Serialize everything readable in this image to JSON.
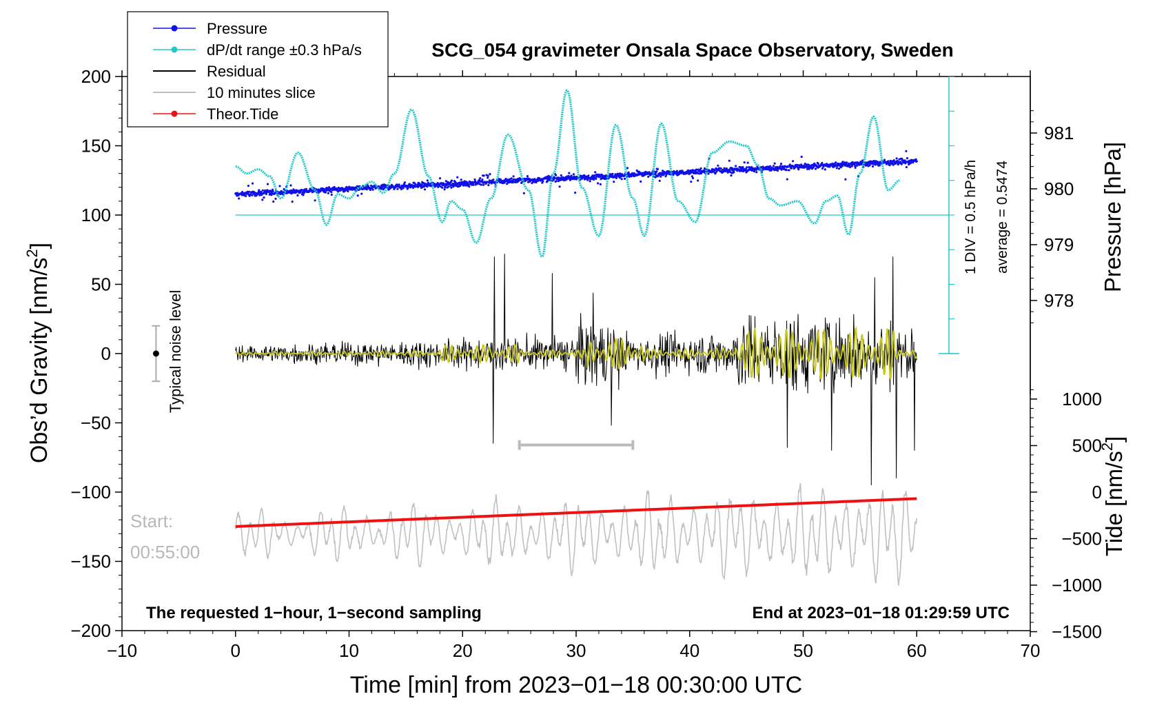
{
  "chart_data": {
    "type": "line",
    "title": "SCG_054 gravimeter Onsala Space Observatory, Sweden",
    "xlabel": "Time [min] from 2023−01−18 00:30:00 UTC",
    "ylabel_left_main": "Obs’d Gravity [nm/s",
    "ylabel_left_sup": "2",
    "ylabel_left_close": "]",
    "ylabel_right_pressure": "Pressure [hPa]",
    "ylabel_right_tide_main": "Tide [nm/s",
    "ylabel_right_tide_sup": "2",
    "ylabel_right_tide_close": "]",
    "xlim": [
      -10,
      70
    ],
    "ylim": [
      -200,
      200
    ],
    "pressure_ylim": [
      977,
      982
    ],
    "tide_ylim": [
      -1500,
      1500
    ],
    "x_ticks": [
      -10,
      0,
      10,
      20,
      30,
      40,
      50,
      60,
      70
    ],
    "x_tick_labels": [
      "−10",
      "0",
      "10",
      "20",
      "30",
      "40",
      "50",
      "60",
      "70"
    ],
    "y_ticks": [
      200,
      150,
      100,
      50,
      0,
      -50,
      -100,
      -150,
      -200
    ],
    "y_tick_labels": [
      "200",
      "150",
      "100",
      "50",
      "0",
      "−50",
      "−100",
      "−150",
      "−200"
    ],
    "pressure_ticks": [
      981,
      980,
      979,
      978
    ],
    "pressure_tick_labels": [
      "981",
      "980",
      "979",
      "978"
    ],
    "tide_ticks": [
      1000,
      500,
      0,
      -500,
      -1000,
      -1500
    ],
    "tide_tick_labels": [
      "1000",
      "500",
      "0",
      "−500",
      "−1000",
      "−1500"
    ],
    "legend": {
      "position": "top-left",
      "entries": [
        {
          "label": "Pressure",
          "color": "#1010e8",
          "style": "line-dot"
        },
        {
          "label": "dP/dt range ±0.3 hPa/s",
          "color": "#20c8c8",
          "style": "line-dot"
        },
        {
          "label": "Residual",
          "color": "#000000",
          "style": "line"
        },
        {
          "label": "10 minutes slice",
          "color": "#c0c0c0",
          "style": "line"
        },
        {
          "label": "Theor.Tide",
          "color": "#ee1111",
          "style": "line-dot"
        }
      ]
    },
    "annotations": {
      "noise_label": "Typical noise level",
      "noise_center": 0,
      "noise_halfrange": 20,
      "start_label": "Start:",
      "start_time": "00:55:00",
      "slice_window_min": [
        25,
        35
      ],
      "slice_window_level": -66,
      "div_label": "1 DIV = 0.5 hPa/h",
      "average_label": "average = 0.5474",
      "bottom_left": "The requested 1−hour, 1−second sampling",
      "bottom_right": "End at 2023−01−18 01:29:59 UTC"
    },
    "series": [
      {
        "name": "Pressure",
        "unit": "hPa",
        "axis": "right-top",
        "x_min": [
          0,
          60
        ],
        "values_hPa": [
          979.9,
          980.5
        ],
        "approx": "linear increase with scatter",
        "color": "#1010e8"
      },
      {
        "name": "dP/dt",
        "axis": "right-top-scale",
        "baseline_y": 100,
        "approx_x": [
          0,
          1,
          2,
          3,
          4,
          5.5,
          7,
          8,
          9,
          10,
          11,
          12,
          13,
          14,
          15.5,
          17,
          18.2,
          19,
          20,
          21.2,
          22.5,
          24,
          25.8,
          27,
          28,
          29.2,
          30.5,
          32,
          33.5,
          35,
          36,
          37.5,
          39,
          40.5,
          42,
          43.5,
          45,
          46,
          47,
          48,
          49.5,
          51,
          52,
          53,
          54,
          55,
          56.2,
          57.5,
          58.5
        ],
        "approx_y": [
          135,
          130,
          133,
          128,
          112,
          145,
          118,
          93,
          115,
          112,
          120,
          124,
          116,
          130,
          176,
          128,
          95,
          110,
          104,
          80,
          112,
          158,
          118,
          70,
          130,
          190,
          120,
          85,
          165,
          112,
          85,
          166,
          110,
          95,
          145,
          153,
          150,
          136,
          112,
          107,
          110,
          94,
          110,
          114,
          86,
          130,
          171,
          118,
          125
        ],
        "color": "#20c8c8"
      },
      {
        "name": "Residual",
        "unit": "nm/s²",
        "axis": "left",
        "x_min": [
          0,
          60
        ],
        "approx": "noise about 0, amplitude ~10 growing to ~30, spikes to ±70",
        "color": "#000000"
      },
      {
        "name": "Residual smoothed",
        "axis": "left",
        "x_min": [
          0,
          60
        ],
        "approx": "yellow smoothed residual about 0, amplitude up to ~25",
        "color": "#c8c818"
      },
      {
        "name": "10 minutes slice",
        "axis": "left",
        "x_min": [
          0,
          60
        ],
        "center": -130,
        "approx": "oscillation amplitude ~15 to ~40",
        "color": "#c0c0c0"
      },
      {
        "name": "Theor.Tide",
        "unit": "nm/s²",
        "axis": "right-bottom",
        "x_min": [
          0,
          60
        ],
        "values": [
          -370,
          -70
        ],
        "color": "#ee1111"
      }
    ]
  }
}
